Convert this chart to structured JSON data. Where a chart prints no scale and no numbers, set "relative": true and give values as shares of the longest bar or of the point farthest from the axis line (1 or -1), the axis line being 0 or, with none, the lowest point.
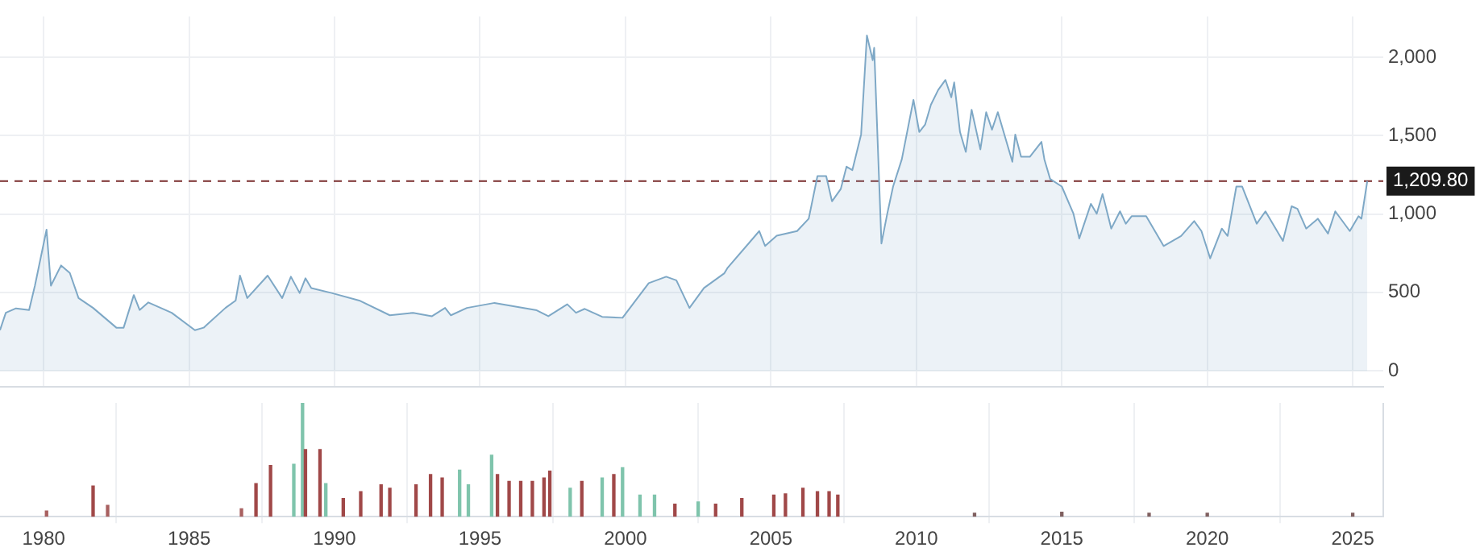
{
  "chart_data": [
    {
      "type": "area",
      "x": [
        1978.5,
        1978.7,
        1979.05,
        1979.5,
        1979.7,
        1980.1,
        1980.25,
        1980.6,
        1980.9,
        1981.2,
        1981.7,
        1982.5,
        1982.75,
        1983.1,
        1983.3,
        1983.6,
        1984.4,
        1985.2,
        1985.5,
        1986.25,
        1986.6,
        1986.75,
        1987.0,
        1987.7,
        1988.2,
        1988.5,
        1988.8,
        1989.0,
        1989.2,
        1989.9,
        1990.85,
        1991.9,
        1992.7,
        1993.35,
        1993.8,
        1994.0,
        1994.55,
        1995.5,
        1996.95,
        1997.35,
        1998.0,
        1998.3,
        1998.6,
        1999.2,
        1999.9,
        2000.8,
        2001.4,
        2001.75,
        2002.2,
        2002.7,
        2003.4,
        2003.5,
        2004.6,
        2004.8,
        2005.2,
        2005.9,
        2006.3,
        2006.6,
        2006.9,
        2007.1,
        2007.4,
        2007.6,
        2007.8,
        2008.1,
        2008.3,
        2008.5,
        2008.55,
        2008.8,
        2009.0,
        2009.2,
        2009.5,
        2009.9,
        2010.1,
        2010.3,
        2010.5,
        2010.75,
        2011.0,
        2011.2,
        2011.3,
        2011.5,
        2011.7,
        2011.9,
        2012.2,
        2012.4,
        2012.6,
        2012.8,
        2013.3,
        2013.4,
        2013.6,
        2013.9,
        2014.3,
        2014.4,
        2014.6,
        2015.0,
        2015.4,
        2015.6,
        2016.0,
        2016.2,
        2016.4,
        2016.7,
        2017.0,
        2017.2,
        2017.4,
        2017.9,
        2018.5,
        2019.1,
        2019.55,
        2019.8,
        2020.1,
        2020.5,
        2020.7,
        2021.0,
        2021.2,
        2021.7,
        2022.0,
        2022.6,
        2022.9,
        2023.1,
        2023.4,
        2023.8,
        2024.15,
        2024.4,
        2024.9,
        2025.2,
        2025.3,
        2025.5
      ],
      "series": [
        {
          "color": "#7ea8c6",
          "values": [
            259,
            370,
            398,
            388,
            543,
            900,
            543,
            672,
            624,
            464,
            401,
            275,
            275,
            483,
            388,
            436,
            370,
            259,
            275,
            401,
            448,
            607,
            464,
            607,
            464,
            600,
            496,
            590,
            528,
            496,
            448,
            354,
            370,
            348,
            401,
            354,
            401,
            433,
            386,
            348,
            424,
            370,
            395,
            344,
            338,
            559,
            600,
            577,
            401,
            528,
            622,
            654,
            891,
            796,
            862,
            891,
            970,
            1242,
            1242,
            1081,
            1159,
            1302,
            1280,
            1507,
            2139,
            1981,
            2060,
            812,
            1002,
            1175,
            1349,
            1728,
            1523,
            1570,
            1697,
            1791,
            1855,
            1744,
            1839,
            1523,
            1396,
            1665,
            1412,
            1649,
            1538,
            1649,
            1333,
            1507,
            1365,
            1365,
            1460,
            1349,
            1223,
            1175,
            1002,
            844,
            1065,
            1002,
            1128,
            907,
            1017,
            938,
            986,
            986,
            796,
            860,
            955,
            891,
            717,
            907,
            860,
            1175,
            1175,
            938,
            1017,
            828,
            1049,
            1033,
            907,
            970,
            875,
            1017,
            891,
            986,
            970,
            1209.8
          ]
        }
      ],
      "xlim": [
        1978.5,
        2026.05
      ],
      "xticks": [
        1980,
        1985,
        1990,
        1995,
        2000,
        2005,
        2010,
        2015,
        2020,
        2025
      ],
      "ylim": [
        -100,
        2260
      ],
      "yticks": [
        0,
        500,
        {
          "value": 1000,
          "label": "1,000"
        },
        {
          "value": 1500,
          "label": "1,500"
        },
        {
          "value": 2000,
          "label": "2,000"
        }
      ],
      "ref_lines": [
        {
          "axis": "y",
          "value": 1209.8,
          "label": "1,209.80",
          "color": "#7a2e2e",
          "line_style": "dashed"
        }
      ],
      "grid": true,
      "tick_labels": "y",
      "legend": false
    },
    {
      "type": "bar",
      "relative": true,
      "x": [
        1980.1,
        1981.7,
        1982.2,
        1986.8,
        1987.3,
        1987.8,
        1988.6,
        1988.9,
        1989.0,
        1989.5,
        1989.7,
        1990.3,
        1990.9,
        1991.6,
        1991.9,
        1992.8,
        1993.3,
        1993.7,
        1994.3,
        1994.6,
        1995.4,
        1995.6,
        1996.0,
        1996.4,
        1996.8,
        1997.2,
        1997.4,
        1998.1,
        1998.5,
        1999.2,
        1999.6,
        1999.9,
        2000.5,
        2001.0,
        2001.7,
        2002.5,
        2003.1,
        2004.0,
        2005.1,
        2005.5,
        2006.1,
        2006.6,
        2007.0,
        2007.3,
        2012.0,
        2015.0,
        2018.0,
        2020.0,
        2025.0
      ],
      "values": [
        0.05,
        0.27,
        0.1,
        0.07,
        0.29,
        0.45,
        0.46,
        1,
        0.59,
        0.59,
        0.29,
        0.16,
        0.22,
        0.28,
        0.25,
        0.28,
        0.37,
        0.34,
        0.41,
        0.28,
        0.54,
        0.37,
        0.31,
        0.31,
        0.31,
        0.34,
        0.4,
        0.25,
        0.31,
        0.34,
        0.37,
        0.43,
        0.19,
        0.19,
        0.11,
        0.13,
        0.11,
        0.16,
        0.19,
        0.2,
        0.25,
        0.22,
        0.22,
        0.19,
        0.03,
        0.04,
        0.03,
        0.03,
        0.03
      ],
      "colors": [
        "#a86060",
        "#a04848",
        "#a86060",
        "#a86060",
        "#a04848",
        "#a04848",
        "#7fc4ac",
        "#7fc4ac",
        "#a04848",
        "#a04848",
        "#7fc4ac",
        "#a04848",
        "#a04848",
        "#a04848",
        "#a04848",
        "#a04848",
        "#a04848",
        "#a04848",
        "#7fc4ac",
        "#7fc4ac",
        "#7fc4ac",
        "#a04848",
        "#a04848",
        "#a04848",
        "#a04848",
        "#a04848",
        "#a04848",
        "#7fc4ac",
        "#a04848",
        "#7fc4ac",
        "#a04848",
        "#7fc4ac",
        "#7fc4ac",
        "#7fc4ac",
        "#a04848",
        "#7fc4ac",
        "#a04848",
        "#a04848",
        "#a04848",
        "#a04848",
        "#a04848",
        "#a04848",
        "#a04848",
        "#a04848",
        "#806060",
        "#806060",
        "#806060",
        "#806060",
        "#806060"
      ],
      "xlim": [
        1978.5,
        2026.05
      ],
      "xticks": [
        1980,
        1985,
        1990,
        1995,
        2000,
        2005,
        2010,
        2015,
        2020,
        2025
      ],
      "grid": "x",
      "tick_labels": "x",
      "legend": false
    }
  ]
}
